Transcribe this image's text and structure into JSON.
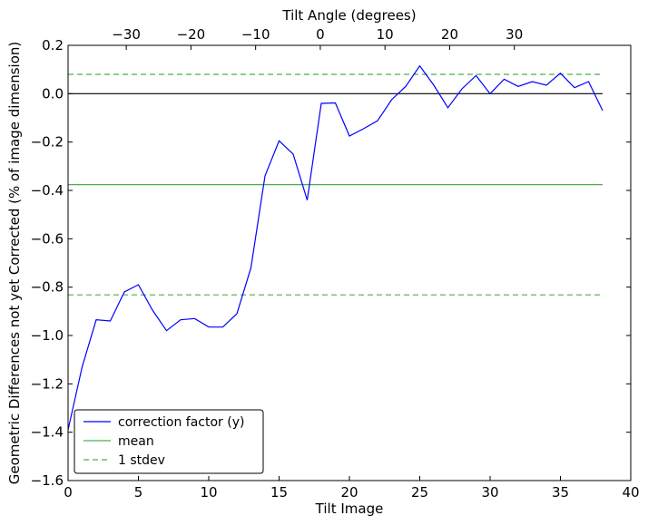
{
  "chart_data": {
    "type": "line",
    "xlabel": "Tilt Image",
    "ylabel": "Geometric Differences not yet Corrected (% of image dimension)",
    "x2label": "Tilt Angle (degrees)",
    "xlim": [
      0,
      40
    ],
    "ylim": [
      -1.6,
      0.2
    ],
    "x2lim": [
      -39,
      48
    ],
    "xticks": [
      0,
      5,
      10,
      15,
      20,
      25,
      30,
      35,
      40
    ],
    "xtick_labels": [
      "0",
      "5",
      "10",
      "15",
      "20",
      "25",
      "30",
      "35",
      "40"
    ],
    "yticks": [
      -1.6,
      -1.4,
      -1.2,
      -1.0,
      -0.8,
      -0.6,
      -0.4,
      -0.2,
      0.0,
      0.2
    ],
    "ytick_labels": [
      "−1.6",
      "−1.4",
      "−1.2",
      "−1.0",
      "−0.8",
      "−0.6",
      "−0.4",
      "−0.2",
      "0.0",
      "0.2"
    ],
    "x2ticks": [
      -30,
      -20,
      -10,
      0,
      10,
      20,
      30
    ],
    "x2tick_labels": [
      "−30",
      "−20",
      "−10",
      "0",
      "10",
      "20",
      "30"
    ],
    "grid": false,
    "legend_position": "lower-left",
    "colors": {
      "series": "#0000ff",
      "mean": "#4daf4a",
      "stdev": "#4daf4a",
      "zero": "#000000"
    },
    "series": [
      {
        "name": "correction factor (y)",
        "x": [
          0,
          1,
          2,
          3,
          4,
          5,
          6,
          7,
          8,
          9,
          10,
          11,
          12,
          13,
          14,
          15,
          16,
          17,
          18,
          19,
          20,
          21,
          22,
          23,
          24,
          25,
          26,
          27,
          28,
          29,
          30,
          31,
          32,
          33,
          34,
          35,
          36,
          37,
          38
        ],
        "values": [
          -1.39,
          -1.13,
          -0.935,
          -0.94,
          -0.82,
          -0.79,
          -0.895,
          -0.98,
          -0.935,
          -0.93,
          -0.965,
          -0.965,
          -0.91,
          -0.72,
          -0.34,
          -0.195,
          -0.25,
          -0.44,
          -0.04,
          -0.038,
          -0.175,
          -0.145,
          -0.112,
          -0.025,
          0.03,
          0.115,
          0.035,
          -0.058,
          0.02,
          0.075,
          0.0,
          0.06,
          0.03,
          0.05,
          0.035,
          0.085,
          0.025,
          0.05,
          -0.07
        ]
      }
    ],
    "hlines": [
      {
        "name": "mean",
        "y": -0.376,
        "style": "solid"
      },
      {
        "name": "1 stdev",
        "y": 0.08,
        "style": "dashed"
      },
      {
        "name": "1 stdev",
        "y": -0.832,
        "style": "dashed"
      },
      {
        "name": "",
        "y": 0.0,
        "style": "solid-black"
      }
    ],
    "hline_xrange": [
      0,
      38
    ],
    "legend": [
      {
        "label": "correction factor (y)",
        "style": "series"
      },
      {
        "label": "mean",
        "style": "mean"
      },
      {
        "label": "1 stdev",
        "style": "stdev"
      }
    ]
  }
}
